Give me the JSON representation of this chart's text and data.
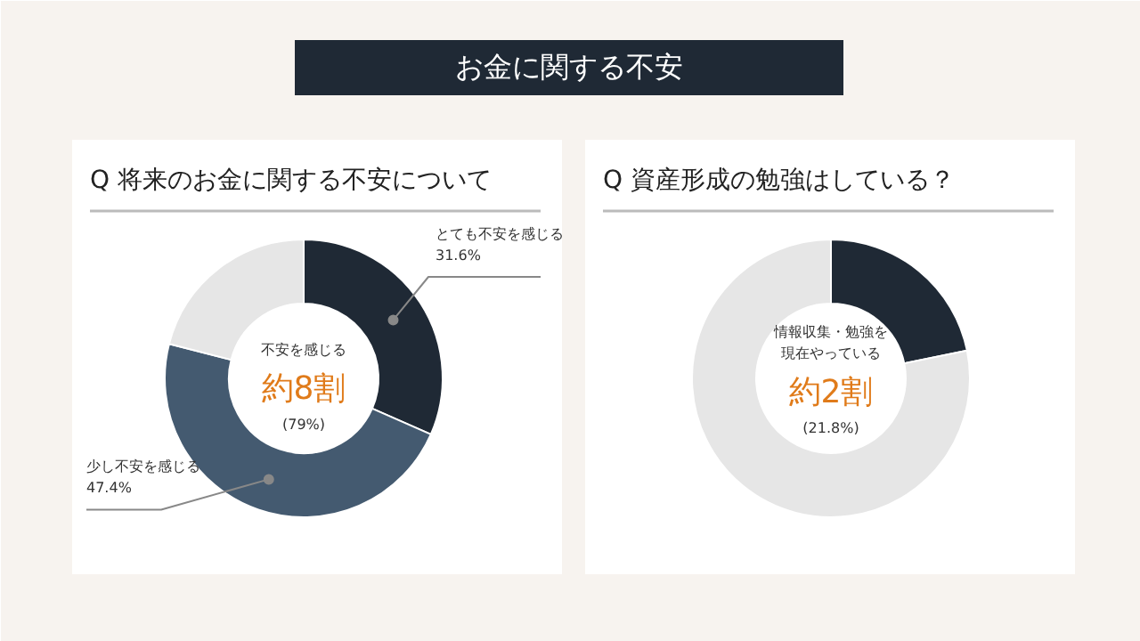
{
  "chart_data": [
    {
      "type": "other",
      "title": "お金に関する不安"
    },
    {
      "type": "donut",
      "title": "Q 将来のお金に関する不安について",
      "categories": [
        "とても不安を感じる",
        "少し不安を感じる",
        null
      ],
      "values": [
        31.6,
        47.4,
        21.0
      ],
      "colors": [
        "#1f2935",
        "#445a70",
        "#e6e6e6"
      ],
      "value_labels": [
        "31.6%",
        "47.4%",
        null
      ],
      "annotations": [
        "不安を感じる",
        "約8割",
        "(79%)"
      ]
    },
    {
      "type": "donut",
      "title": "Q 資産形成の勉強はしている？",
      "categories": [
        null,
        null
      ],
      "values": [
        21.8,
        78.2
      ],
      "colors": [
        "#1f2935",
        "#e6e6e6"
      ],
      "annotations": [
        "情報収集・勉強を",
        "現在やっている",
        "約2割",
        "(21.8%)"
      ]
    }
  ]
}
